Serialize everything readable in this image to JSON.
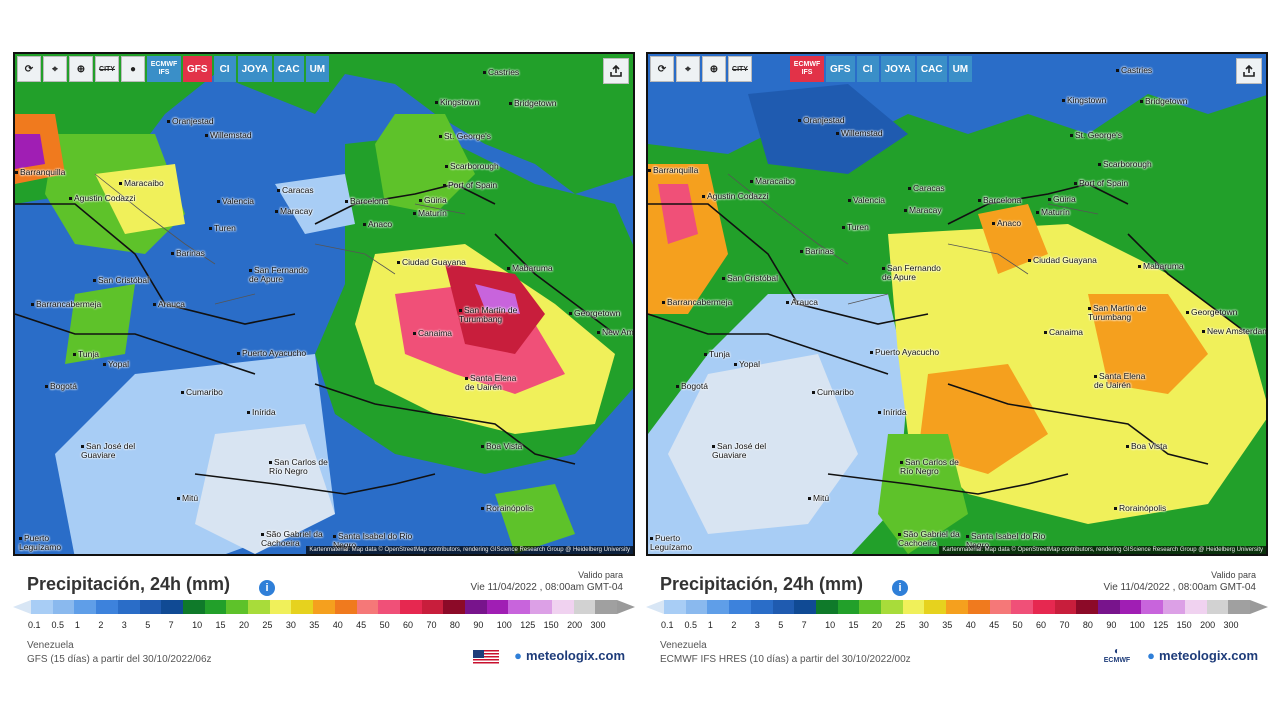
{
  "legend": {
    "colors": [
      "#a8cdf5",
      "#8ab9ee",
      "#5f9ee8",
      "#3d82dc",
      "#2a6dc8",
      "#1f5bb0",
      "#104a94",
      "#0f7a2a",
      "#22a02a",
      "#5ec22a",
      "#a8dc3a",
      "#f0f05a",
      "#e6d21e",
      "#f5a01e",
      "#f07a1e",
      "#f57878",
      "#f05078",
      "#e62850",
      "#c81e3c",
      "#8c0a28",
      "#78148c",
      "#a01eb4",
      "#c864dc",
      "#dca0e6",
      "#f0d2f0",
      "#d2d2d2",
      "#a0a0a0"
    ],
    "ticks": [
      "0.1",
      "0.5",
      "1",
      "2",
      "3",
      "5",
      "7",
      "10",
      "15",
      "20",
      "25",
      "30",
      "35",
      "40",
      "45",
      "50",
      "60",
      "70",
      "80",
      "90",
      "100",
      "125",
      "150",
      "200",
      "300"
    ]
  },
  "panels": [
    {
      "toolbar": {
        "icons": [
          "refresh-icon",
          "location-pin-icon",
          "zoom-icon",
          "city-icon",
          "dot-icon"
        ],
        "city_label": "CITY",
        "models": [
          {
            "label": "ECMWF IFS",
            "active": false,
            "small": true
          },
          {
            "label": "GFS",
            "active": true,
            "small": false
          },
          {
            "label": "CI",
            "active": false,
            "small": false
          },
          {
            "label": "JOYA",
            "active": false,
            "small": false
          },
          {
            "label": "CAC",
            "active": false,
            "small": false
          },
          {
            "label": "UM",
            "active": false,
            "small": false
          }
        ]
      },
      "cities": [
        "Castries",
        "Kingstown",
        "Bridgetown",
        "Oranjestad",
        "Willemstad",
        "St. George's",
        "Scarborough",
        "Port of Spain",
        "Barranquilla",
        "Maracaibo",
        "Agustin Codazzi",
        "Caracas",
        "Valencia",
        "Maracay",
        "Barcelona",
        "Güiria",
        "Anaco",
        "Maturín",
        "Turen",
        "Barinas",
        "Ciudad Guayana",
        "Mabaruma",
        "San Cristóbal",
        "San Fernando de Apure",
        "Barrancabermeja",
        "Arauca",
        "San Martín de Turumbang",
        "Georgetown",
        "New Amsterdam",
        "Canaima",
        "Puerto Ayacucho",
        "Tunja",
        "Yopal",
        "Bogotá",
        "Santa Elena de Uairén",
        "Cumaribo",
        "Inírida",
        "Boa Vista",
        "San José del Guaviare",
        "San Carlos de Río Negro",
        "Mitú",
        "Rorainópolis",
        "Puerto Leguízamo",
        "São Gabriel da Cachoeira",
        "Santa Isabel do Rio Negro"
      ],
      "attribution": "Kartenmaterial: Map data © OpenStreetMap contributors, rendering GIScience Research Group @ Heidelberg University",
      "title": "Precipitación, 24h (mm)",
      "valid_label": "Valido para",
      "valid_date": "Vie 11/04/2022 , 08:00am GMT-04",
      "region": "Venezuela",
      "model_run": "GFS  (15 días)  a partir del 30/10/2022/06z",
      "brand": "meteologix.com"
    },
    {
      "toolbar": {
        "icons": [
          "refresh-icon",
          "location-pin-icon",
          "zoom-icon",
          "city-icon"
        ],
        "city_label": "CITY",
        "models": [
          {
            "label": "ECMWF IFS",
            "active": true,
            "small": true
          },
          {
            "label": "GFS",
            "active": false,
            "small": false
          },
          {
            "label": "CI",
            "active": false,
            "small": false
          },
          {
            "label": "JOYA",
            "active": false,
            "small": false
          },
          {
            "label": "CAC",
            "active": false,
            "small": false
          },
          {
            "label": "UM",
            "active": false,
            "small": false
          }
        ]
      },
      "cities": [
        "Castries",
        "Kingstown",
        "Bridgetown",
        "Oranjestad",
        "Willemstad",
        "St. George's",
        "Scarborough",
        "Port of Spain",
        "Barranquilla",
        "Maracaibo",
        "Agustin Codazzi",
        "Caracas",
        "Valencia",
        "Maracay",
        "Barcelona",
        "Güiria",
        "Anaco",
        "Maturín",
        "Turen",
        "Barinas",
        "Ciudad Guayana",
        "Mabaruma",
        "San Cristóbal",
        "San Fernando de Apure",
        "Barrancabermeja",
        "Arauca",
        "San Martín de Turumbang",
        "Georgetown",
        "New Amsterdam",
        "Canaima",
        "Puerto Ayacucho",
        "Tunja",
        "Yopal",
        "Bogotá",
        "Santa Elena de Uairén",
        "Cumaribo",
        "Inírida",
        "Boa Vista",
        "San José del Guaviare",
        "San Carlos de Río Negro",
        "Mitú",
        "Rorainópolis",
        "Puerto Leguízamo",
        "São Gabriel da Cachoeira",
        "Santa Isabel do Rio Negro"
      ],
      "attribution": "Kartenmaterial: Map data © OpenStreetMap contributors, rendering GIScience Research Group @ Heidelberg University",
      "title": "Precipitación, 24h (mm)",
      "valid_label": "Valido para",
      "valid_date": "Vie 11/04/2022 , 08:00am GMT-04",
      "region": "Venezuela",
      "model_run": "ECMWF IFS HRES  (10 días)  a partir del 30/10/2022/00z",
      "brand": "meteologix.com",
      "logo_text": "ECMWF"
    }
  ]
}
